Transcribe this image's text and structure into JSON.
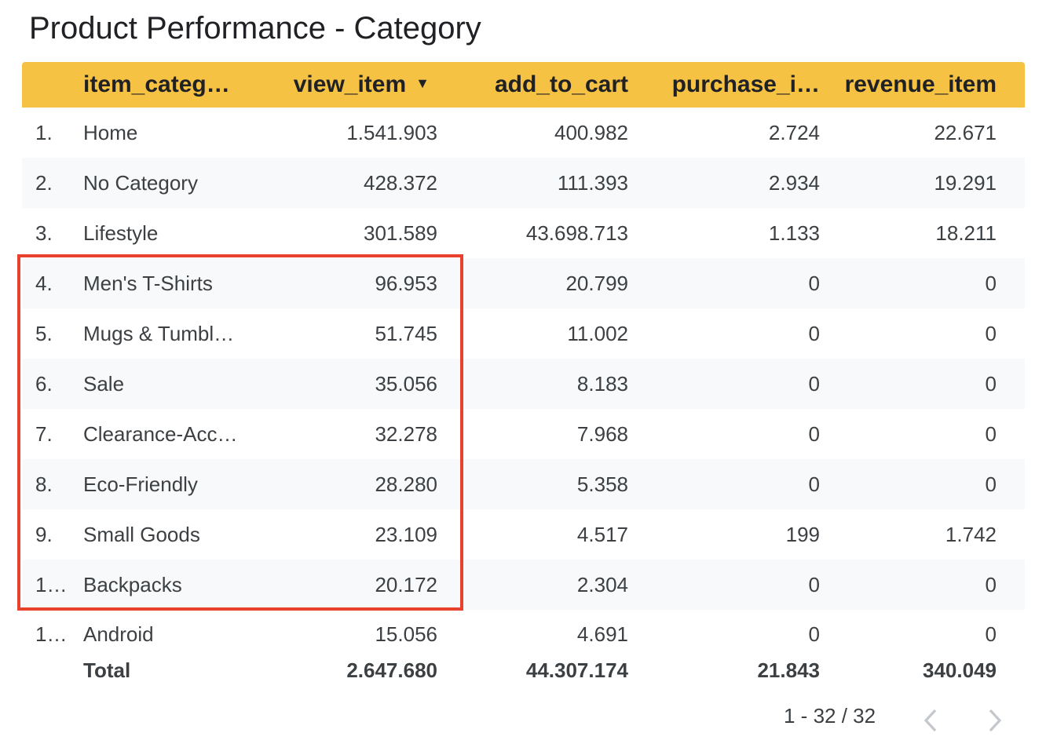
{
  "title": "Product Performance - Category",
  "table": {
    "columns": {
      "index": "",
      "category": "item_categ…",
      "view": "view_item",
      "add": "add_to_cart",
      "purchase": "purchase_i…",
      "revenue": "revenue_item"
    },
    "sort_icon": "sort-descending-icon",
    "rows": [
      {
        "index": "1.",
        "category": "Home",
        "view": "1.541.903",
        "add": "400.982",
        "purchase": "2.724",
        "revenue": "22.671"
      },
      {
        "index": "2.",
        "category": "No Category",
        "view": "428.372",
        "add": "111.393",
        "purchase": "2.934",
        "revenue": "19.291"
      },
      {
        "index": "3.",
        "category": "Lifestyle",
        "view": "301.589",
        "add": "43.698.713",
        "purchase": "1.133",
        "revenue": "18.211"
      },
      {
        "index": "4.",
        "category": "Men's T-Shirts",
        "view": "96.953",
        "add": "20.799",
        "purchase": "0",
        "revenue": "0"
      },
      {
        "index": "5.",
        "category": "Mugs & Tumbl…",
        "view": "51.745",
        "add": "11.002",
        "purchase": "0",
        "revenue": "0"
      },
      {
        "index": "6.",
        "category": "Sale",
        "view": "35.056",
        "add": "8.183",
        "purchase": "0",
        "revenue": "0"
      },
      {
        "index": "7.",
        "category": "Clearance-Acc…",
        "view": "32.278",
        "add": "7.968",
        "purchase": "0",
        "revenue": "0"
      },
      {
        "index": "8.",
        "category": "Eco-Friendly",
        "view": "28.280",
        "add": "5.358",
        "purchase": "0",
        "revenue": "0"
      },
      {
        "index": "9.",
        "category": "Small Goods",
        "view": "23.109",
        "add": "4.517",
        "purchase": "199",
        "revenue": "1.742"
      },
      {
        "index": "1…",
        "category": "Backpacks",
        "view": "20.172",
        "add": "2.304",
        "purchase": "0",
        "revenue": "0"
      },
      {
        "index": "1…",
        "category": "Android",
        "view": "15.056",
        "add": "4.691",
        "purchase": "0",
        "revenue": "0"
      }
    ],
    "total": {
      "label": "Total",
      "view": "2.647.680",
      "add": "44.307.174",
      "purchase": "21.843",
      "revenue": "340.049"
    }
  },
  "pagination": {
    "text": "1 - 32 / 32",
    "prev_icon": "chevron-left-icon",
    "next_icon": "chevron-right-icon"
  },
  "colors": {
    "header_bg": "#f6c244",
    "highlight_border": "#e8412e",
    "alt_row_bg": "#f8f9fa"
  }
}
